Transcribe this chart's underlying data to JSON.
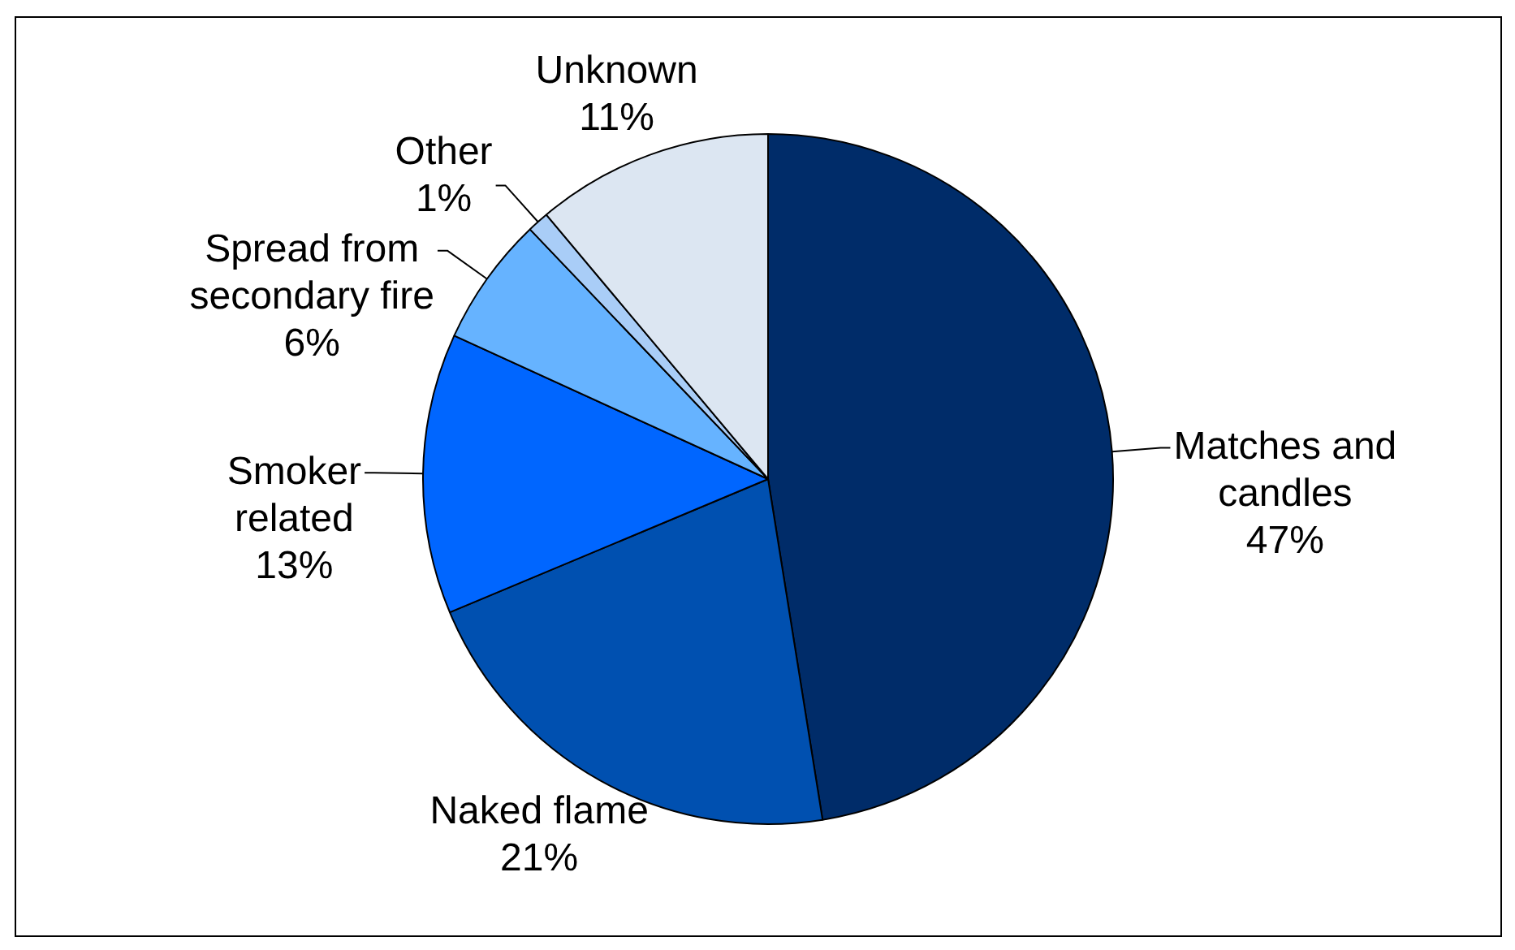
{
  "chart_data": {
    "type": "pie",
    "categories": [
      "Matches and candles",
      "Naked flame",
      "Smoker related",
      "Spread from secondary fire",
      "Other",
      "Unknown"
    ],
    "values": [
      47,
      21,
      13,
      6,
      1,
      11
    ],
    "colors": [
      "#002c69",
      "#0050b0",
      "#0066ff",
      "#66b3ff",
      "#a9cdf7",
      "#dce6f2"
    ],
    "value_labels": [
      "47%",
      "21%",
      "13%",
      "6%",
      "1%",
      "11%"
    ]
  }
}
